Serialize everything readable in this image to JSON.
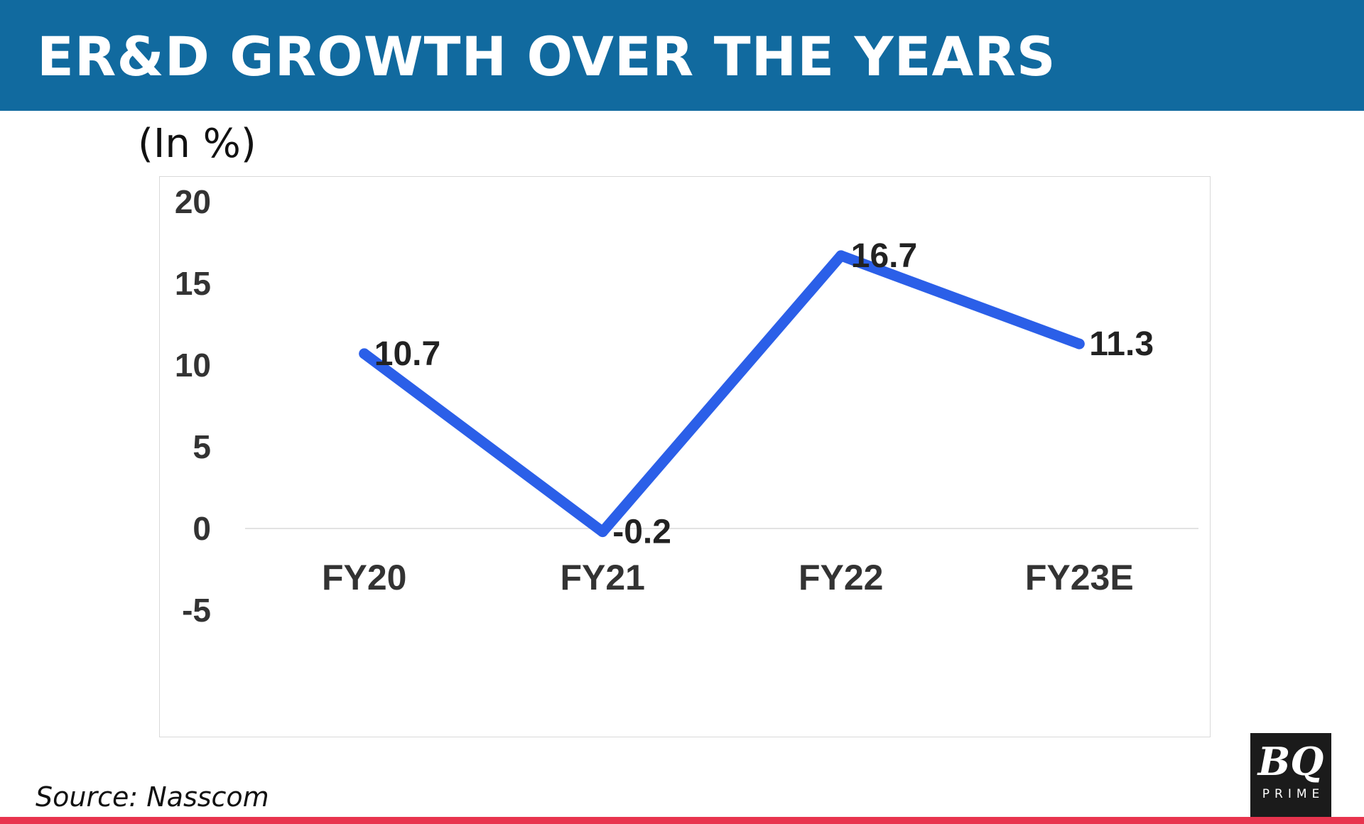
{
  "header": {
    "title": "ER&D GROWTH OVER THE YEARS"
  },
  "unit_label": "(In %)",
  "source": "Source: Nasscom",
  "logo": {
    "mark": "BQ",
    "sub": "PRIME"
  },
  "colors": {
    "header": "#116a9f",
    "line": "#2b5fe8",
    "accent_rule": "#e8344e"
  },
  "chart_data": {
    "type": "line",
    "title": "ER&D GROWTH OVER THE YEARS",
    "ylabel": "(In %)",
    "xlabel": "",
    "categories": [
      "FY20",
      "FY21",
      "FY22",
      "FY23E"
    ],
    "series": [
      {
        "values": [
          10.7,
          -0.2,
          16.7,
          11.3
        ]
      }
    ],
    "data_labels": [
      "10.7",
      "-0.2",
      "16.7",
      "11.3"
    ],
    "ylim": [
      -5,
      20
    ],
    "yticks": [
      20,
      15,
      10,
      5,
      0,
      -5
    ],
    "grid": false,
    "legend": "none"
  }
}
